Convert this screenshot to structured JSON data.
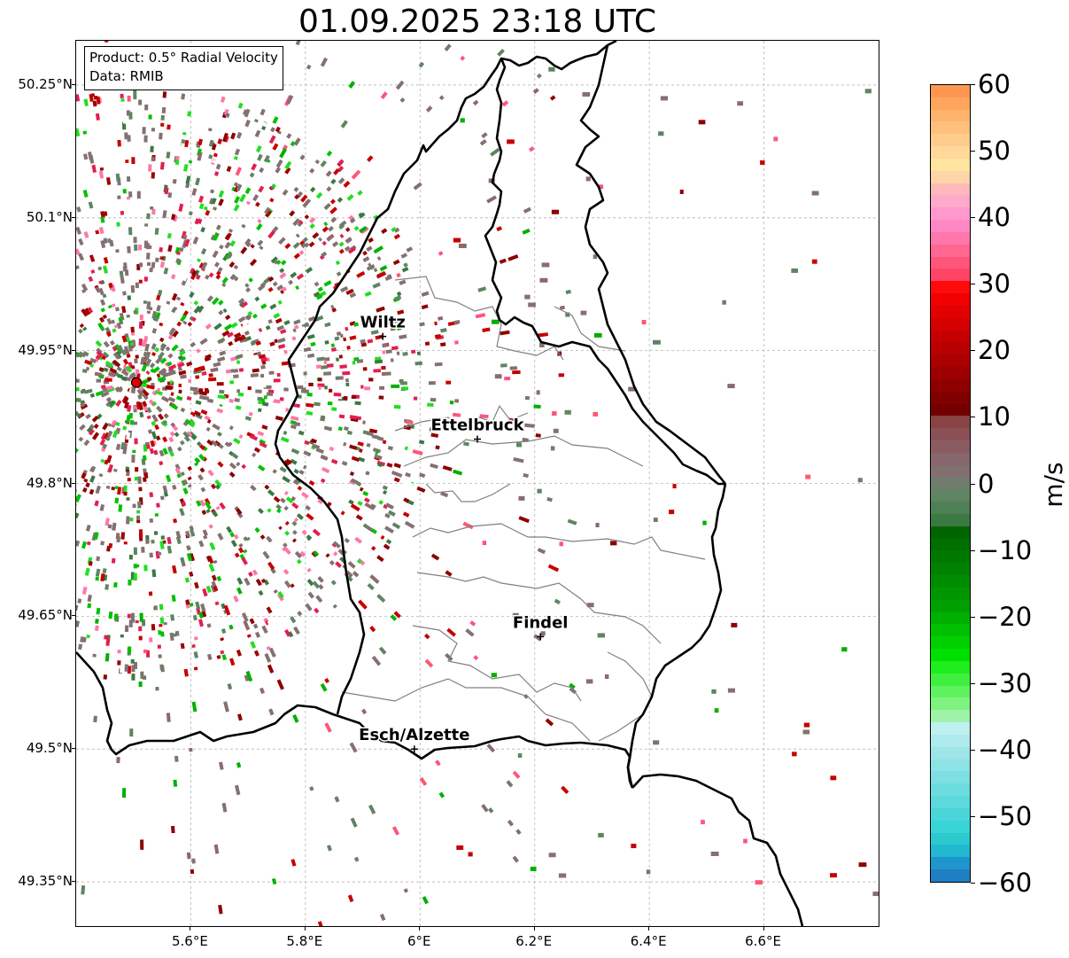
{
  "title": "01.09.2025 23:18 UTC",
  "info": {
    "product_line": "Product: 0.5° Radial Velocity",
    "data_line": "Data: RMIB"
  },
  "map": {
    "lon_range": [
      5.4,
      6.8
    ],
    "lat_range": [
      49.3,
      50.3
    ],
    "lat_ticks": [
      {
        "value": 50.25,
        "label": "50.25°N"
      },
      {
        "value": 50.1,
        "label": "50.1°N"
      },
      {
        "value": 49.95,
        "label": "49.95°N"
      },
      {
        "value": 49.8,
        "label": "49.8°N"
      },
      {
        "value": 49.65,
        "label": "49.65°N"
      },
      {
        "value": 49.5,
        "label": "49.5°N"
      },
      {
        "value": 49.35,
        "label": "49.35°N"
      }
    ],
    "lon_ticks": [
      {
        "value": 5.6,
        "label": "5.6°E"
      },
      {
        "value": 5.8,
        "label": "5.8°E"
      },
      {
        "value": 6.0,
        "label": "6°E"
      },
      {
        "value": 6.2,
        "label": "6.2°E"
      },
      {
        "value": 6.4,
        "label": "6.4°E"
      },
      {
        "value": 6.6,
        "label": "6.6°E"
      }
    ],
    "grid": true,
    "radar_site": {
      "lon": 5.505,
      "lat": 49.914,
      "color": "#e00000"
    },
    "cities": [
      {
        "name": "Wiltz",
        "lon": 5.935,
        "lat": 49.966
      },
      {
        "name": "Ettelbruck",
        "lon": 6.1,
        "lat": 49.85
      },
      {
        "name": "Findel",
        "lon": 6.21,
        "lat": 49.627
      },
      {
        "name": "Esch/Alzette",
        "lon": 5.99,
        "lat": 49.5
      }
    ]
  },
  "colorbar": {
    "unit": "m/s",
    "min": -60,
    "max": 60,
    "ticks": [
      {
        "value": 60,
        "label": "60"
      },
      {
        "value": 50,
        "label": "50"
      },
      {
        "value": 40,
        "label": "40"
      },
      {
        "value": 30,
        "label": "30"
      },
      {
        "value": 20,
        "label": "20"
      },
      {
        "value": 10,
        "label": "10"
      },
      {
        "value": 0,
        "label": "0"
      },
      {
        "value": -10,
        "label": "−10"
      },
      {
        "value": -20,
        "label": "−20"
      },
      {
        "value": -30,
        "label": "−30"
      },
      {
        "value": -40,
        "label": "−40"
      },
      {
        "value": -50,
        "label": "−50"
      },
      {
        "value": -60,
        "label": "−60"
      }
    ],
    "steps": [
      "#ff9650",
      "#ffa55e",
      "#ffb46e",
      "#ffc07e",
      "#ffcc8e",
      "#ffd89a",
      "#ffe5a0",
      "#fdd5a8",
      "#ffb9b9",
      "#ffaacc",
      "#ff99cc",
      "#ff88c4",
      "#ff77aa",
      "#ff6690",
      "#ff557a",
      "#ff4466",
      "#ff0a0a",
      "#f00000",
      "#e20000",
      "#d40000",
      "#c60000",
      "#b80000",
      "#aa0000",
      "#9c0000",
      "#8e0000",
      "#800000",
      "#720000",
      "#884444",
      "#8a5055",
      "#8a5c62",
      "#87676d",
      "#827070",
      "#707d6c",
      "#5f8462",
      "#4e8055",
      "#3a7a42",
      "#006400",
      "#006e00",
      "#007800",
      "#008200",
      "#008c00",
      "#009600",
      "#00a000",
      "#00b000",
      "#00c000",
      "#00d000",
      "#00e000",
      "#1eee1e",
      "#3ff03f",
      "#5ff25f",
      "#7ff27f",
      "#9ef3a9",
      "#bff0f0",
      "#aeeaee",
      "#9de5e8",
      "#8de2e6",
      "#7ddfe2",
      "#6cdcde",
      "#5bd9dc",
      "#4ad6d9",
      "#38d4d6",
      "#2acacf",
      "#22b8d0",
      "#1e96cc",
      "#1f7fc3"
    ]
  }
}
